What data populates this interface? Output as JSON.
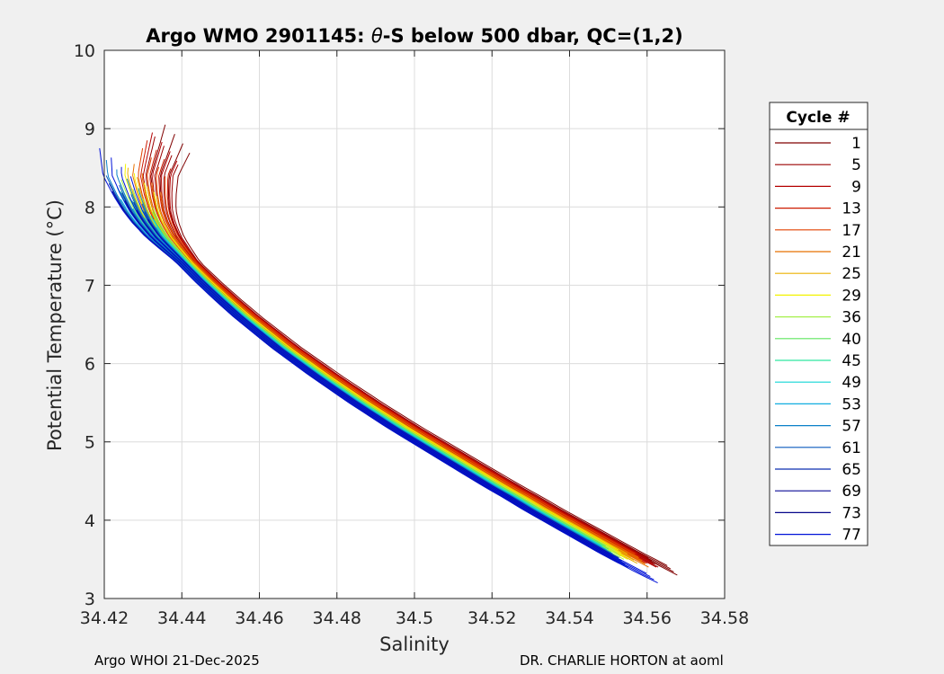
{
  "chart_data": {
    "type": "line",
    "title_prefix": "Argo WMO 2901145: ",
    "title_symbol": "θ",
    "title_suffix": "-S below 500 dbar,  QC=(1,2)",
    "xlabel": "Salinity",
    "ylabel": "Potential Temperature (°C)",
    "xlim": [
      34.42,
      34.58
    ],
    "ylim": [
      3,
      10
    ],
    "xticks": [
      "34.42",
      "34.44",
      "34.46",
      "34.48",
      "34.5",
      "34.52",
      "34.54",
      "34.56",
      "34.58"
    ],
    "yticks": [
      "3",
      "4",
      "5",
      "6",
      "7",
      "8",
      "9",
      "10"
    ],
    "grid": true,
    "legend": {
      "title": "Cycle #",
      "placement": "right-outside",
      "entries": [
        {
          "name": "1",
          "color": "#800000"
        },
        {
          "name": "5",
          "color": "#9a0000"
        },
        {
          "name": "9",
          "color": "#b40000"
        },
        {
          "name": "13",
          "color": "#cd1a00"
        },
        {
          "name": "17",
          "color": "#e24000"
        },
        {
          "name": "21",
          "color": "#e87000"
        },
        {
          "name": "25",
          "color": "#ecb000"
        },
        {
          "name": "29",
          "color": "#f2f200"
        },
        {
          "name": "36",
          "color": "#a6f04a"
        },
        {
          "name": "40",
          "color": "#5ee65e"
        },
        {
          "name": "45",
          "color": "#2ee6a0"
        },
        {
          "name": "49",
          "color": "#12d6d6"
        },
        {
          "name": "53",
          "color": "#10aee0"
        },
        {
          "name": "57",
          "color": "#0a80c8"
        },
        {
          "name": "61",
          "color": "#0a5abe"
        },
        {
          "name": "65",
          "color": "#0c2eb0"
        },
        {
          "name": "69",
          "color": "#0a0a96"
        },
        {
          "name": "73",
          "color": "#06068a"
        },
        {
          "name": "77",
          "color": "#0012d8"
        }
      ]
    },
    "profile_shape": {
      "points": [
        [
          34.424,
          8.4
        ],
        [
          34.426,
          8.15
        ],
        [
          34.428,
          7.95
        ],
        [
          34.43,
          7.8
        ],
        [
          34.433,
          7.62
        ],
        [
          34.436,
          7.48
        ],
        [
          34.44,
          7.3
        ],
        [
          34.445,
          7.05
        ],
        [
          34.45,
          6.82
        ],
        [
          34.455,
          6.6
        ],
        [
          34.46,
          6.4
        ],
        [
          34.465,
          6.2
        ],
        [
          34.47,
          6.02
        ],
        [
          34.475,
          5.84
        ],
        [
          34.48,
          5.67
        ],
        [
          34.485,
          5.5
        ],
        [
          34.49,
          5.34
        ],
        [
          34.495,
          5.18
        ],
        [
          34.5,
          5.03
        ],
        [
          34.505,
          4.88
        ],
        [
          34.51,
          4.73
        ],
        [
          34.515,
          4.58
        ],
        [
          34.52,
          4.43
        ],
        [
          34.525,
          4.29
        ],
        [
          34.53,
          4.14
        ],
        [
          34.535,
          4.0
        ],
        [
          34.54,
          3.86
        ],
        [
          34.545,
          3.72
        ],
        [
          34.55,
          3.58
        ],
        [
          34.555,
          3.45
        ],
        [
          34.56,
          3.32
        ],
        [
          34.565,
          3.2
        ],
        [
          34.57,
          3.1
        ]
      ],
      "cycle_offsets": [
        {
          "cycle": 1,
          "ds": 0.008,
          "top": 9.05,
          "bottom": 3.3
        },
        {
          "cycle": 5,
          "ds": 0.007,
          "top": 8.9,
          "bottom": 3.4
        },
        {
          "cycle": 9,
          "ds": 0.0065,
          "top": 8.95,
          "bottom": 3.4
        },
        {
          "cycle": 13,
          "ds": 0.006,
          "top": 8.85,
          "bottom": 3.45
        },
        {
          "cycle": 17,
          "ds": 0.0055,
          "top": 8.75,
          "bottom": 3.45
        },
        {
          "cycle": 21,
          "ds": 0.0045,
          "top": 8.55,
          "bottom": 3.4
        },
        {
          "cycle": 25,
          "ds": 0.0035,
          "top": 8.5,
          "bottom": 3.45
        },
        {
          "cycle": 29,
          "ds": 0.003,
          "top": 8.55,
          "bottom": 3.5
        },
        {
          "cycle": 36,
          "ds": 0.002,
          "top": 8.35,
          "bottom": 3.5
        },
        {
          "cycle": 40,
          "ds": 0.0015,
          "top": 8.3,
          "bottom": 3.55
        },
        {
          "cycle": 45,
          "ds": 0.0008,
          "top": 8.2,
          "bottom": 3.55
        },
        {
          "cycle": 49,
          "ds": 0.0005,
          "top": 8.25,
          "bottom": 3.55
        },
        {
          "cycle": 53,
          "ds": 0.0,
          "top": 8.1,
          "bottom": 3.5
        },
        {
          "cycle": 57,
          "ds": -0.0003,
          "top": 8.6,
          "bottom": 3.45
        },
        {
          "cycle": 61,
          "ds": -0.0006,
          "top": 8.4,
          "bottom": 3.4
        },
        {
          "cycle": 65,
          "ds": -0.0008,
          "top": 8.3,
          "bottom": 3.4
        },
        {
          "cycle": 69,
          "ds": -0.001,
          "top": 8.2,
          "bottom": 3.45
        },
        {
          "cycle": 73,
          "ds": -0.0012,
          "top": 7.7,
          "bottom": 3.45
        },
        {
          "cycle": 77,
          "ds": -0.0012,
          "top": 8.75,
          "bottom": 3.2
        }
      ]
    }
  },
  "footer": {
    "left": "Argo WHOI 21-Dec-2025",
    "right": "DR. CHARLIE HORTON at aoml"
  }
}
